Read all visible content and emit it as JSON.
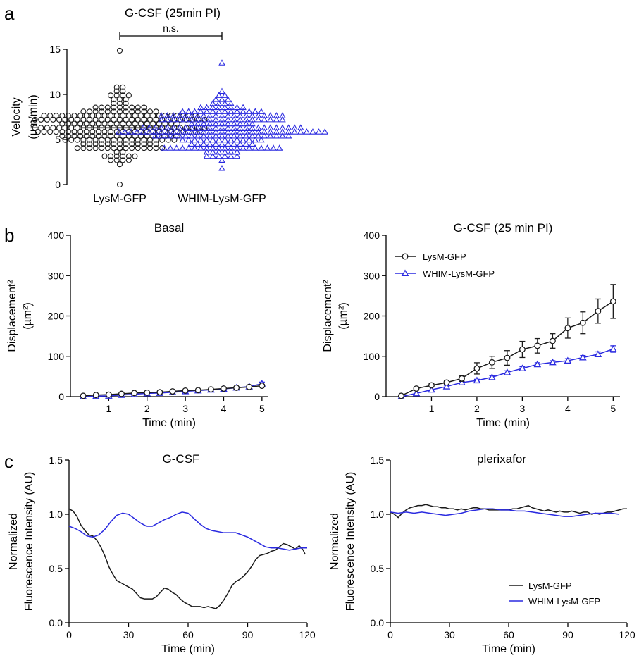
{
  "colors": {
    "black": "#1a1a1a",
    "blue": "#2a2ae0"
  },
  "panel_letters": [
    "a",
    "b",
    "c"
  ],
  "chart_data": [
    {
      "id": "a",
      "type": "scatter",
      "title": "G-CSF (25min PI)",
      "ylabel": [
        "Velocity",
        "(µm/min)"
      ],
      "ylim": [
        0,
        15
      ],
      "yticks": [
        0,
        5,
        10,
        15
      ],
      "categories": [
        "LysM-GFP",
        "WHIM-LysM-GFP"
      ],
      "significance": "n.s.",
      "series": [
        {
          "name": "LysM-GFP",
          "marker": "circle",
          "color": "#1a1a1a",
          "mean": 6.3,
          "min": 0.0,
          "max": 14.9,
          "n": 250
        },
        {
          "name": "WHIM-LysM-GFP",
          "marker": "triangle",
          "color": "#2a2ae0",
          "mean": 6.0,
          "min": 1.6,
          "max": 13.6,
          "n": 230
        }
      ]
    },
    {
      "id": "b1",
      "type": "line",
      "title": "Basal",
      "xlabel": "Time (min)",
      "ylabel": [
        "Displacement²",
        "(µm²)"
      ],
      "xlim": [
        0,
        5.15
      ],
      "ylim": [
        0,
        400
      ],
      "xticks": [
        1,
        2,
        3,
        4,
        5
      ],
      "yticks": [
        0,
        100,
        200,
        300,
        400
      ],
      "x": [
        0.333,
        0.667,
        1.0,
        1.333,
        1.667,
        2.0,
        2.333,
        2.667,
        3.0,
        3.333,
        3.667,
        4.0,
        4.333,
        4.667,
        5.0
      ],
      "series": [
        {
          "name": "LysM-GFP",
          "marker": "circle",
          "color": "#1a1a1a",
          "values": [
            2,
            4,
            5,
            7,
            9,
            10,
            11,
            13,
            15,
            16,
            18,
            20,
            22,
            24,
            27
          ],
          "err": [
            1,
            1,
            1,
            1,
            2,
            2,
            2,
            2,
            2,
            2,
            2,
            2,
            3,
            3,
            3
          ]
        },
        {
          "name": "WHIM-LysM-GFP",
          "marker": "triangle",
          "color": "#2a2ae0",
          "values": [
            0,
            1,
            2,
            4,
            6,
            8,
            9,
            11,
            13,
            15,
            17,
            19,
            22,
            25,
            32
          ],
          "err": [
            1,
            1,
            1,
            1,
            1,
            2,
            2,
            2,
            2,
            2,
            2,
            2,
            3,
            3,
            4
          ]
        }
      ]
    },
    {
      "id": "b2",
      "type": "line",
      "title": "G-CSF (25 min PI)",
      "xlabel": "Time (min)",
      "ylabel": [
        "Displacement²",
        "(µm²)"
      ],
      "xlim": [
        0,
        5.15
      ],
      "ylim": [
        0,
        400
      ],
      "xticks": [
        1,
        2,
        3,
        4,
        5
      ],
      "yticks": [
        0,
        100,
        200,
        300,
        400
      ],
      "legend": "top-left",
      "x": [
        0.333,
        0.667,
        1.0,
        1.333,
        1.667,
        2.0,
        2.333,
        2.667,
        3.0,
        3.333,
        3.667,
        4.0,
        4.333,
        4.667,
        5.0
      ],
      "series": [
        {
          "name": "LysM-GFP",
          "marker": "circle",
          "color": "#1a1a1a",
          "values": [
            2,
            20,
            28,
            35,
            45,
            70,
            85,
            96,
            117,
            126,
            138,
            170,
            183,
            212,
            236
          ],
          "err": [
            2,
            4,
            4,
            5,
            7,
            14,
            15,
            18,
            20,
            18,
            18,
            25,
            27,
            30,
            42
          ]
        },
        {
          "name": "WHIM-LysM-GFP",
          "marker": "triangle",
          "color": "#2a2ae0",
          "values": [
            0,
            8,
            17,
            25,
            35,
            40,
            48,
            60,
            70,
            80,
            85,
            89,
            97,
            105,
            118
          ],
          "err": [
            1,
            2,
            2,
            3,
            3,
            3,
            4,
            4,
            4,
            4,
            4,
            5,
            5,
            6,
            8
          ]
        }
      ]
    },
    {
      "id": "c1",
      "type": "line",
      "title": "G-CSF",
      "xlabel": "Time (min)",
      "ylabel": [
        "Normalized",
        "Fluorescence Intensity (AU)"
      ],
      "xlim": [
        0,
        120
      ],
      "ylim": [
        0,
        1.5
      ],
      "xticks": [
        0,
        30,
        60,
        90,
        120
      ],
      "yticks": [
        0.0,
        0.5,
        1.0,
        1.5
      ],
      "series": [
        {
          "name": "LysM-GFP",
          "color": "#1a1a1a",
          "points": [
            [
              0,
              1.05
            ],
            [
              2,
              1.03
            ],
            [
              4,
              0.98
            ],
            [
              6,
              0.9
            ],
            [
              8,
              0.85
            ],
            [
              10,
              0.81
            ],
            [
              12,
              0.8
            ],
            [
              14,
              0.76
            ],
            [
              16,
              0.7
            ],
            [
              18,
              0.62
            ],
            [
              20,
              0.52
            ],
            [
              22,
              0.45
            ],
            [
              24,
              0.39
            ],
            [
              26,
              0.37
            ],
            [
              28,
              0.35
            ],
            [
              30,
              0.33
            ],
            [
              32,
              0.31
            ],
            [
              34,
              0.27
            ],
            [
              36,
              0.23
            ],
            [
              38,
              0.22
            ],
            [
              40,
              0.22
            ],
            [
              42,
              0.22
            ],
            [
              44,
              0.24
            ],
            [
              46,
              0.28
            ],
            [
              48,
              0.32
            ],
            [
              50,
              0.31
            ],
            [
              52,
              0.28
            ],
            [
              54,
              0.26
            ],
            [
              56,
              0.22
            ],
            [
              58,
              0.19
            ],
            [
              60,
              0.17
            ],
            [
              62,
              0.15
            ],
            [
              64,
              0.15
            ],
            [
              66,
              0.15
            ],
            [
              68,
              0.14
            ],
            [
              70,
              0.15
            ],
            [
              72,
              0.14
            ],
            [
              74,
              0.13
            ],
            [
              76,
              0.16
            ],
            [
              78,
              0.21
            ],
            [
              80,
              0.27
            ],
            [
              82,
              0.34
            ],
            [
              84,
              0.38
            ],
            [
              86,
              0.4
            ],
            [
              88,
              0.43
            ],
            [
              90,
              0.47
            ],
            [
              92,
              0.52
            ],
            [
              94,
              0.58
            ],
            [
              96,
              0.62
            ],
            [
              98,
              0.63
            ],
            [
              100,
              0.64
            ],
            [
              102,
              0.66
            ],
            [
              104,
              0.67
            ],
            [
              106,
              0.7
            ],
            [
              108,
              0.73
            ],
            [
              110,
              0.72
            ],
            [
              112,
              0.7
            ],
            [
              114,
              0.68
            ],
            [
              116,
              0.71
            ],
            [
              118,
              0.67
            ],
            [
              119,
              0.63
            ]
          ]
        },
        {
          "name": "WHIM-LysM-GFP",
          "color": "#2a2ae0",
          "points": [
            [
              0,
              0.89
            ],
            [
              3,
              0.87
            ],
            [
              6,
              0.84
            ],
            [
              9,
              0.8
            ],
            [
              12,
              0.79
            ],
            [
              15,
              0.81
            ],
            [
              18,
              0.86
            ],
            [
              21,
              0.93
            ],
            [
              24,
              0.99
            ],
            [
              27,
              1.01
            ],
            [
              30,
              1.0
            ],
            [
              33,
              0.96
            ],
            [
              36,
              0.92
            ],
            [
              39,
              0.89
            ],
            [
              42,
              0.89
            ],
            [
              45,
              0.92
            ],
            [
              48,
              0.95
            ],
            [
              51,
              0.97
            ],
            [
              54,
              1.0
            ],
            [
              57,
              1.02
            ],
            [
              60,
              1.01
            ],
            [
              63,
              0.96
            ],
            [
              66,
              0.91
            ],
            [
              69,
              0.87
            ],
            [
              72,
              0.85
            ],
            [
              75,
              0.84
            ],
            [
              78,
              0.83
            ],
            [
              81,
              0.83
            ],
            [
              84,
              0.83
            ],
            [
              87,
              0.81
            ],
            [
              90,
              0.79
            ],
            [
              93,
              0.76
            ],
            [
              96,
              0.73
            ],
            [
              99,
              0.7
            ],
            [
              102,
              0.69
            ],
            [
              105,
              0.69
            ],
            [
              108,
              0.68
            ],
            [
              111,
              0.67
            ],
            [
              114,
              0.68
            ],
            [
              117,
              0.69
            ],
            [
              120,
              0.69
            ]
          ]
        }
      ]
    },
    {
      "id": "c2",
      "type": "line",
      "title": "plerixafor",
      "xlabel": "Time (min)",
      "ylabel": [
        "Normalized",
        "Fluorescence Intensity (AU)"
      ],
      "xlim": [
        0,
        120
      ],
      "ylim": [
        0,
        1.5
      ],
      "xticks": [
        0,
        30,
        60,
        90,
        120
      ],
      "yticks": [
        0.0,
        0.5,
        1.0,
        1.5
      ],
      "legend": "bottom-right",
      "series": [
        {
          "name": "LysM-GFP",
          "color": "#1a1a1a",
          "points": [
            [
              0,
              1.02
            ],
            [
              2,
              1.0
            ],
            [
              4,
              0.97
            ],
            [
              6,
              1.01
            ],
            [
              8,
              1.04
            ],
            [
              10,
              1.06
            ],
            [
              12,
              1.07
            ],
            [
              14,
              1.08
            ],
            [
              16,
              1.08
            ],
            [
              18,
              1.09
            ],
            [
              20,
              1.08
            ],
            [
              22,
              1.07
            ],
            [
              24,
              1.07
            ],
            [
              26,
              1.06
            ],
            [
              28,
              1.06
            ],
            [
              30,
              1.05
            ],
            [
              32,
              1.05
            ],
            [
              34,
              1.04
            ],
            [
              36,
              1.05
            ],
            [
              38,
              1.04
            ],
            [
              40,
              1.05
            ],
            [
              42,
              1.06
            ],
            [
              44,
              1.06
            ],
            [
              46,
              1.05
            ],
            [
              48,
              1.05
            ],
            [
              50,
              1.04
            ],
            [
              52,
              1.04
            ],
            [
              54,
              1.04
            ],
            [
              56,
              1.04
            ],
            [
              58,
              1.04
            ],
            [
              60,
              1.04
            ],
            [
              62,
              1.05
            ],
            [
              64,
              1.05
            ],
            [
              66,
              1.06
            ],
            [
              68,
              1.07
            ],
            [
              70,
              1.08
            ],
            [
              72,
              1.06
            ],
            [
              74,
              1.05
            ],
            [
              76,
              1.04
            ],
            [
              78,
              1.03
            ],
            [
              80,
              1.04
            ],
            [
              82,
              1.03
            ],
            [
              84,
              1.02
            ],
            [
              86,
              1.03
            ],
            [
              88,
              1.02
            ],
            [
              90,
              1.02
            ],
            [
              92,
              1.03
            ],
            [
              94,
              1.02
            ],
            [
              96,
              1.01
            ],
            [
              98,
              1.02
            ],
            [
              100,
              1.02
            ],
            [
              102,
              1.0
            ],
            [
              104,
              1.01
            ],
            [
              106,
              1.0
            ],
            [
              108,
              1.01
            ],
            [
              110,
              1.02
            ],
            [
              112,
              1.02
            ],
            [
              114,
              1.03
            ],
            [
              116,
              1.04
            ],
            [
              118,
              1.05
            ],
            [
              120,
              1.05
            ]
          ]
        },
        {
          "name": "WHIM-LysM-GFP",
          "color": "#2a2ae0",
          "points": [
            [
              0,
              1.02
            ],
            [
              4,
              1.01
            ],
            [
              8,
              1.02
            ],
            [
              12,
              1.01
            ],
            [
              16,
              1.02
            ],
            [
              20,
              1.01
            ],
            [
              24,
              1.0
            ],
            [
              28,
              0.99
            ],
            [
              32,
              1.0
            ],
            [
              36,
              1.01
            ],
            [
              40,
              1.03
            ],
            [
              44,
              1.04
            ],
            [
              48,
              1.05
            ],
            [
              52,
              1.05
            ],
            [
              56,
              1.04
            ],
            [
              60,
              1.04
            ],
            [
              64,
              1.03
            ],
            [
              68,
              1.03
            ],
            [
              72,
              1.02
            ],
            [
              76,
              1.01
            ],
            [
              80,
              1.0
            ],
            [
              84,
              0.99
            ],
            [
              88,
              0.98
            ],
            [
              92,
              0.98
            ],
            [
              96,
              0.99
            ],
            [
              100,
              1.0
            ],
            [
              104,
              1.01
            ],
            [
              108,
              1.01
            ],
            [
              112,
              1.01
            ],
            [
              116,
              1.0
            ]
          ]
        }
      ]
    }
  ]
}
